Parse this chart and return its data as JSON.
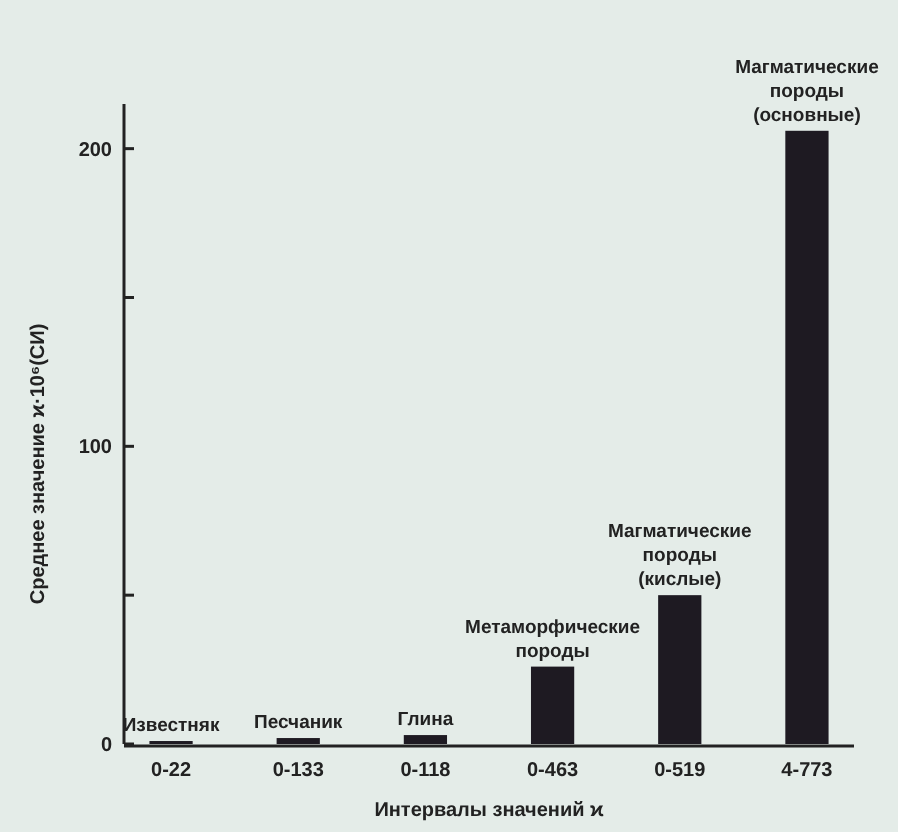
{
  "chart_data": {
    "type": "bar",
    "xlabel": "Интервалы значений ϰ",
    "ylabel": "Среднее значение ϰ·10⁶(СИ)",
    "categories": [
      "0-22",
      "0-133",
      "0-118",
      "0-463",
      "0-519",
      "4-773"
    ],
    "values": [
      1,
      2,
      3,
      26,
      50,
      206
    ],
    "color": "#1e1a22",
    "ylim": [
      0,
      215
    ],
    "yticks": [
      0,
      {
        "value": 50,
        "label": null
      },
      100,
      {
        "value": 150,
        "label": null
      },
      200
    ],
    "grid": false,
    "annotations": [
      {
        "text": "Известняк",
        "x": "0-22",
        "y": 1
      },
      {
        "text": "Песчаник",
        "x": "0-133",
        "y": 2
      },
      {
        "text": "Глина",
        "x": "0-118",
        "y": 3
      },
      {
        "text": "Метаморфические\nпороды",
        "x": "0-463",
        "y": 26
      },
      {
        "text": "Магматические\nпороды\n(кислые)",
        "x": "0-519",
        "y": 50
      },
      {
        "text": "Магматические\nпороды\n(основные)",
        "x": "4-773",
        "y": 206
      }
    ]
  }
}
